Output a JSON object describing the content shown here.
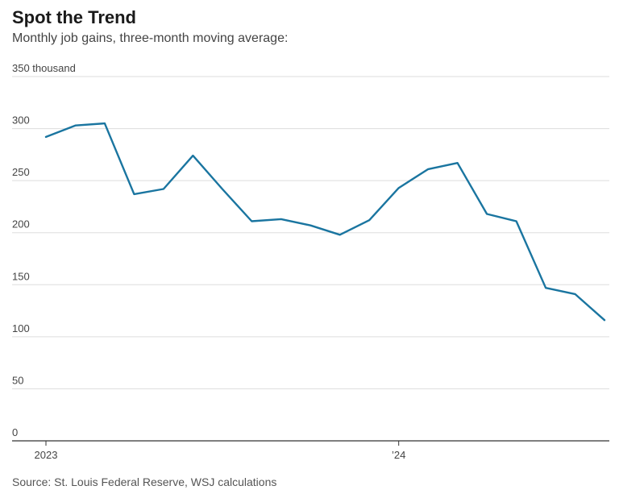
{
  "header": {
    "title": "Spot the Trend",
    "subtitle": "Monthly job gains, three-month moving average:"
  },
  "footer": {
    "source": "Source: St. Louis Federal Reserve, WSJ calculations"
  },
  "colors": {
    "line": "#1a75a0",
    "grid": "#dddddd",
    "axis": "#333333"
  },
  "chart_data": {
    "type": "line",
    "title": "Spot the Trend",
    "subtitle": "Monthly job gains, three-month moving average:",
    "xlabel": "",
    "ylabel": "",
    "ylim": [
      0,
      350
    ],
    "grid": true,
    "y_ticks": [
      {
        "value": 350,
        "label": "350 thousand"
      },
      {
        "value": 300,
        "label": "300"
      },
      {
        "value": 250,
        "label": "250"
      },
      {
        "value": 200,
        "label": "200"
      },
      {
        "value": 150,
        "label": "150"
      },
      {
        "value": 100,
        "label": "100"
      },
      {
        "value": 50,
        "label": "50"
      },
      {
        "value": 0,
        "label": "0"
      }
    ],
    "x_ticks": [
      {
        "index": 0,
        "label": "2023"
      },
      {
        "index": 12,
        "label": "’24"
      }
    ],
    "x": [
      "2023-01",
      "2023-02",
      "2023-03",
      "2023-04",
      "2023-05",
      "2023-06",
      "2023-07",
      "2023-08",
      "2023-09",
      "2023-10",
      "2023-11",
      "2023-12",
      "2024-01",
      "2024-02",
      "2024-03",
      "2024-04",
      "2024-05",
      "2024-06",
      "2024-07",
      "2024-08"
    ],
    "series": [
      {
        "values": [
          292,
          303,
          305,
          237,
          242,
          274,
          242,
          211,
          213,
          207,
          198,
          212,
          243,
          261,
          267,
          218,
          211,
          147,
          141,
          116
        ]
      }
    ]
  }
}
